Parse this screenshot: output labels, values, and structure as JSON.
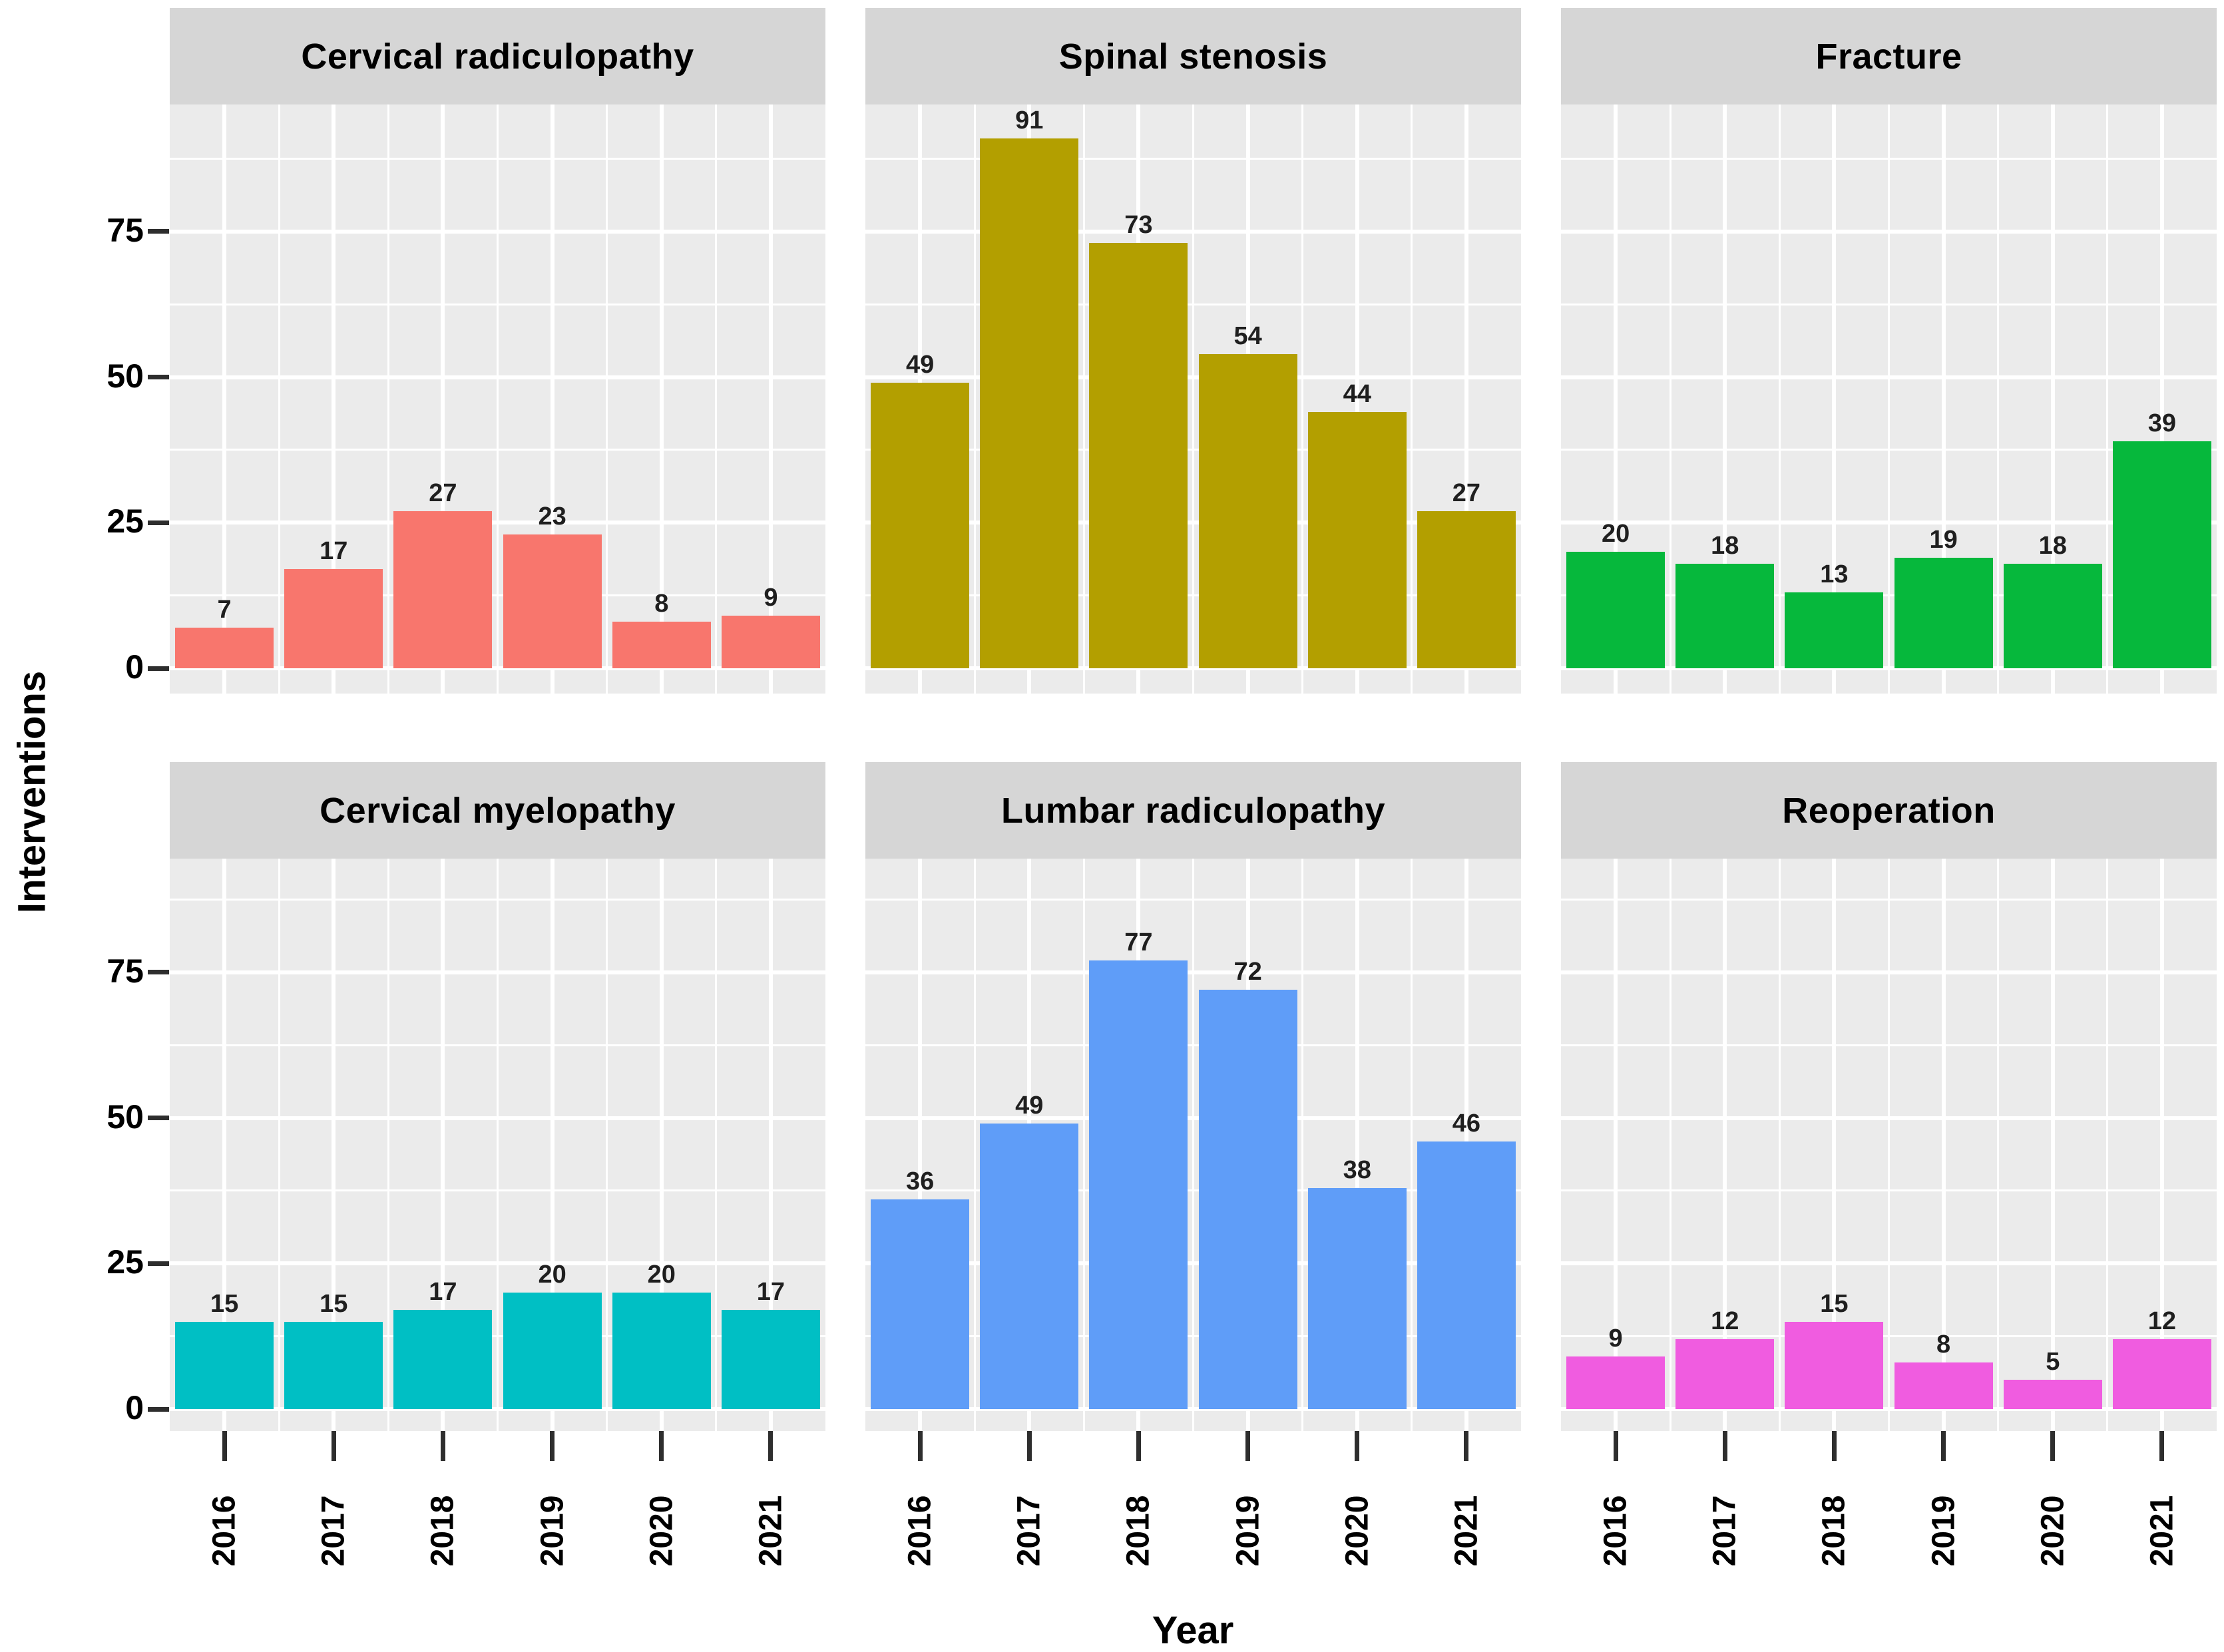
{
  "figure": {
    "y_axis_title": "Interventions",
    "x_axis_title": "Year",
    "facet_layout": "2 rows x 3 columns",
    "colors": {
      "panel_background": "#ebebeb",
      "strip_background": "#d6d6d6",
      "gridline": "#ffffff",
      "tick": "#2e2e2e",
      "text": "#000000"
    }
  },
  "chart_data": {
    "type": "bar",
    "title": "",
    "xlabel": "Year",
    "ylabel": "Interventions",
    "categories": [
      "2016",
      "2017",
      "2018",
      "2019",
      "2020",
      "2021"
    ],
    "y_ticks": [
      0,
      25,
      50,
      75
    ],
    "ylim": [
      0,
      96
    ],
    "grid": true,
    "legend_position": "none",
    "facets_share_axes": true,
    "series": [
      {
        "name": "Cervical radiculopathy",
        "color": "#f8766d",
        "values": [
          7,
          17,
          27,
          23,
          8,
          9
        ]
      },
      {
        "name": "Spinal stenosis",
        "color": "#b39f00",
        "values": [
          49,
          91,
          73,
          54,
          44,
          27
        ]
      },
      {
        "name": "Fracture",
        "color": "#06b83c",
        "values": [
          20,
          18,
          13,
          19,
          18,
          39
        ]
      },
      {
        "name": "Cervical myelopathy",
        "color": "#00bfc4",
        "values": [
          15,
          15,
          17,
          20,
          20,
          17
        ]
      },
      {
        "name": "Lumbar radiculopathy",
        "color": "#5f9df8",
        "values": [
          36,
          49,
          77,
          72,
          38,
          46
        ]
      },
      {
        "name": "Reoperation",
        "color": "#f05ce0",
        "values": [
          9,
          12,
          15,
          8,
          5,
          12
        ]
      }
    ]
  }
}
